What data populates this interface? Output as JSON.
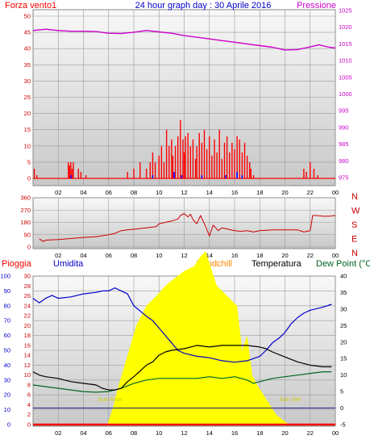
{
  "colors": {
    "wind": "#ff0000",
    "gust": "#0000ff",
    "pressure": "#cc00cc",
    "direction": "#cc0000",
    "humidity": "#0000cc",
    "temperature": "#000000",
    "dewpoint": "#006622",
    "rain": "#ff0000",
    "windchill": "#ff8800",
    "solar": "#ffff00",
    "sun_label": "#cccc00",
    "bg_top": "#f8f8f8",
    "bg_bottom": "#cccccc"
  },
  "chart_data": [
    {
      "type": "line",
      "title": "24 hour graph day : 30 Aprile 2016",
      "left_label": "Forza vento1",
      "right_label": "Pressione",
      "x_ticks": [
        "02",
        "04",
        "06",
        "08",
        "10",
        "12",
        "14",
        "16",
        "18",
        "20",
        "22",
        "00"
      ],
      "y_left_ticks": [
        "0",
        "5",
        "10",
        "15",
        "20",
        "25",
        "30",
        "35",
        "40",
        "45",
        "50"
      ],
      "y_left_range": [
        0,
        50
      ],
      "y_right_ticks": [
        "975",
        "980",
        "985",
        "990",
        "995",
        "1000",
        "1005",
        "1010",
        "1015",
        "1020",
        "1025"
      ],
      "y_right_range": [
        975,
        1025
      ],
      "pressure": {
        "x": [
          0,
          1,
          2,
          3,
          4,
          5,
          6,
          7,
          8,
          9,
          10,
          11,
          12,
          13,
          14,
          15,
          16,
          17,
          18,
          19,
          20,
          21,
          22,
          22.7,
          23.5,
          24
        ],
        "y": [
          1019,
          1019.4,
          1019,
          1018.8,
          1018.8,
          1018.7,
          1018.2,
          1018.1,
          1018.5,
          1019,
          1018.6,
          1018.2,
          1017.5,
          1017,
          1016.5,
          1016,
          1015.5,
          1015,
          1014.5,
          1014,
          1013.2,
          1013.3,
          1014.1,
          1014.7,
          1014,
          1013.8
        ]
      },
      "wind": {
        "x": [
          0.1,
          0.3,
          2.8,
          2.9,
          3.0,
          3.1,
          3.2,
          3.6,
          3.8,
          4.2,
          7.5,
          8.0,
          8.5,
          9.0,
          9.3,
          9.5,
          9.7,
          10.0,
          10.2,
          10.4,
          10.6,
          10.8,
          11.0,
          11.1,
          11.3,
          11.5,
          11.7,
          11.9,
          12.0,
          12.1,
          12.3,
          12.5,
          12.7,
          12.9,
          13.0,
          13.2,
          13.4,
          13.6,
          13.8,
          14.0,
          14.2,
          14.4,
          14.6,
          14.8,
          15.0,
          15.2,
          15.4,
          15.6,
          15.8,
          16.0,
          16.2,
          16.4,
          16.6,
          16.8,
          17.0,
          17.2,
          17.3,
          17.5,
          21.5,
          21.7,
          22.0,
          22.3,
          22.6
        ],
        "y": [
          3,
          1,
          5,
          4,
          5,
          3,
          5,
          3,
          2,
          1,
          2,
          3,
          5,
          3,
          5,
          8,
          5,
          7,
          10,
          5,
          15,
          10,
          12,
          7,
          10,
          13,
          18,
          12,
          8,
          13,
          14,
          10,
          12,
          6,
          10,
          14,
          11,
          15,
          9,
          13,
          7,
          12,
          8,
          15,
          6,
          11,
          13,
          8,
          11,
          9,
          13,
          12,
          8,
          11,
          7,
          5,
          3,
          1,
          3,
          2,
          5,
          3,
          1
        ]
      },
      "gust": {
        "x": [
          3.0,
          9.5,
          11.2,
          11.8,
          13.4,
          15.3,
          16.2,
          16.6
        ],
        "y": [
          1,
          1,
          2,
          1,
          1,
          1,
          2,
          1
        ]
      }
    },
    {
      "type": "line",
      "x_ticks": [
        "02",
        "04",
        "06",
        "08",
        "10",
        "12",
        "14",
        "16",
        "18",
        "20",
        "22",
        "00"
      ],
      "y_left_ticks": [
        "0",
        "90",
        "180",
        "270",
        "360"
      ],
      "y_left_range": [
        0,
        360
      ],
      "right_labels": [
        "N",
        "W",
        "S",
        "E",
        "N"
      ],
      "direction": {
        "x": [
          0.5,
          0.8,
          1.0,
          2.0,
          3.0,
          4.0,
          5.0,
          6.0,
          6.5,
          7.0,
          7.5,
          8.0,
          9.0,
          9.8,
          10.0,
          10.5,
          11.0,
          11.5,
          11.7,
          12.0,
          12.3,
          12.5,
          12.7,
          13.0,
          13.3,
          13.7,
          14.0,
          14.3,
          14.7,
          15.0,
          15.5,
          16.0,
          16.5,
          17.0,
          17.5,
          18.0,
          19.0,
          20.0,
          21.0,
          21.5,
          22.0,
          22.2,
          22.5,
          23.0,
          23.5,
          24.0
        ],
        "y": [
          60,
          40,
          50,
          55,
          62,
          70,
          75,
          90,
          100,
          120,
          125,
          130,
          140,
          150,
          170,
          180,
          190,
          205,
          230,
          245,
          220,
          240,
          200,
          170,
          230,
          150,
          80,
          160,
          120,
          140,
          130,
          120,
          115,
          120,
          110,
          120,
          125,
          125,
          125,
          110,
          120,
          230,
          230,
          225,
          225,
          230
        ]
      }
    },
    {
      "type": "line",
      "header_labels": [
        "Pioggia",
        "Umidita",
        "Windchill",
        "Temperatura",
        "Dew Point (°C"
      ],
      "x_ticks": [
        "02",
        "04",
        "06",
        "08",
        "10",
        "12",
        "14",
        "16",
        "18",
        "20",
        "22",
        "00"
      ],
      "y_humidity_ticks": [
        "0",
        "10",
        "20",
        "30",
        "40",
        "50",
        "60",
        "70",
        "80",
        "90",
        "100"
      ],
      "y_humidity_range": [
        0,
        100
      ],
      "y_rain_ticks": [
        "0",
        "2",
        "4",
        "6",
        "8",
        "10",
        "12",
        "14",
        "16",
        "18",
        "20",
        "22",
        "24",
        "26",
        "28",
        "30"
      ],
      "y_rain_range": [
        0,
        30
      ],
      "y_temp_ticks": [
        "-5",
        "0",
        "5",
        "10",
        "15",
        "20",
        "25",
        "30",
        "35",
        "40"
      ],
      "y_temp_range": [
        -5,
        40
      ],
      "annotations": [
        {
          "text": "Sun Rise",
          "x": 6.1
        },
        {
          "text": "Sun Set",
          "x": 20.4
        }
      ],
      "humidity": {
        "x": [
          0,
          0.5,
          1.0,
          1.5,
          2.0,
          3.0,
          4.0,
          5.0,
          5.5,
          6.0,
          6.5,
          7.0,
          7.5,
          8.0,
          9.0,
          9.5,
          10.0,
          10.5,
          11.0,
          11.5,
          12.0,
          12.5,
          13.0,
          14.0,
          15.0,
          16.0,
          17.0,
          18.0,
          18.5,
          19.0,
          19.5,
          20.0,
          20.5,
          21.0,
          21.5,
          22.0,
          23.0,
          23.7
        ],
        "y": [
          85,
          82,
          85,
          87,
          85,
          86,
          88,
          89,
          90,
          90,
          92,
          90,
          88,
          80,
          73,
          70,
          65,
          60,
          55,
          50,
          48,
          47,
          46,
          45,
          43,
          42,
          43,
          46,
          50,
          55,
          58,
          62,
          68,
          72,
          75,
          77,
          79,
          81
        ]
      },
      "temperature": {
        "x": [
          0,
          0.5,
          1.0,
          2.0,
          3.0,
          4.0,
          5.0,
          5.5,
          6.0,
          6.5,
          7.0,
          7.5,
          8.0,
          9.0,
          9.5,
          10.0,
          10.5,
          11.0,
          12.0,
          12.5,
          13.0,
          14.0,
          15.0,
          16.0,
          17.0,
          18.0,
          18.5,
          19.0,
          20.0,
          21.0,
          22.0,
          23.0,
          23.7
        ],
        "y": [
          11,
          10,
          9.5,
          9,
          8,
          7.5,
          7,
          6,
          5.5,
          5.5,
          6,
          8,
          9.5,
          13,
          14,
          16,
          17,
          17.5,
          18,
          18.5,
          19,
          18.5,
          19,
          19,
          19,
          18.5,
          18,
          17,
          15.5,
          14,
          13,
          12.5,
          12.5
        ]
      },
      "dewpoint": {
        "x": [
          0,
          1.0,
          2.0,
          3.0,
          4.0,
          5.0,
          6.0,
          6.5,
          7.0,
          8.0,
          9.0,
          10.0,
          11.0,
          12.0,
          13.0,
          14.0,
          15.0,
          16.0,
          17.0,
          17.5,
          18.0,
          19.0,
          20.0,
          21.0,
          22.0,
          23.0,
          23.7
        ],
        "y": [
          7,
          6.5,
          6,
          5.5,
          5,
          4.8,
          5,
          5.5,
          6,
          7.5,
          8.5,
          9,
          9,
          9,
          9,
          9.5,
          9,
          9.5,
          8.5,
          7.5,
          8,
          9,
          9.5,
          10,
          10.5,
          11,
          11
        ]
      },
      "solar": {
        "x": [
          5.9,
          6.3,
          6.8,
          7.5,
          8.2,
          9.0,
          9.8,
          10.5,
          11.2,
          12.0,
          12.8,
          13.3,
          13.7,
          14.2,
          14.6,
          15.0,
          15.4,
          15.8,
          16.2,
          16.6,
          17.0,
          17.4,
          17.8,
          18.3,
          18.8,
          19.3,
          19.8,
          20.3
        ],
        "y": [
          0,
          3,
          8,
          14,
          20,
          24,
          26,
          28,
          29.5,
          31,
          32,
          34,
          35,
          31,
          28,
          27,
          26,
          25,
          24,
          15,
          18,
          10,
          8,
          6,
          4,
          2,
          1,
          0
        ]
      },
      "rain": {
        "x": [
          0,
          24
        ],
        "y": [
          0,
          0
        ]
      }
    }
  ]
}
